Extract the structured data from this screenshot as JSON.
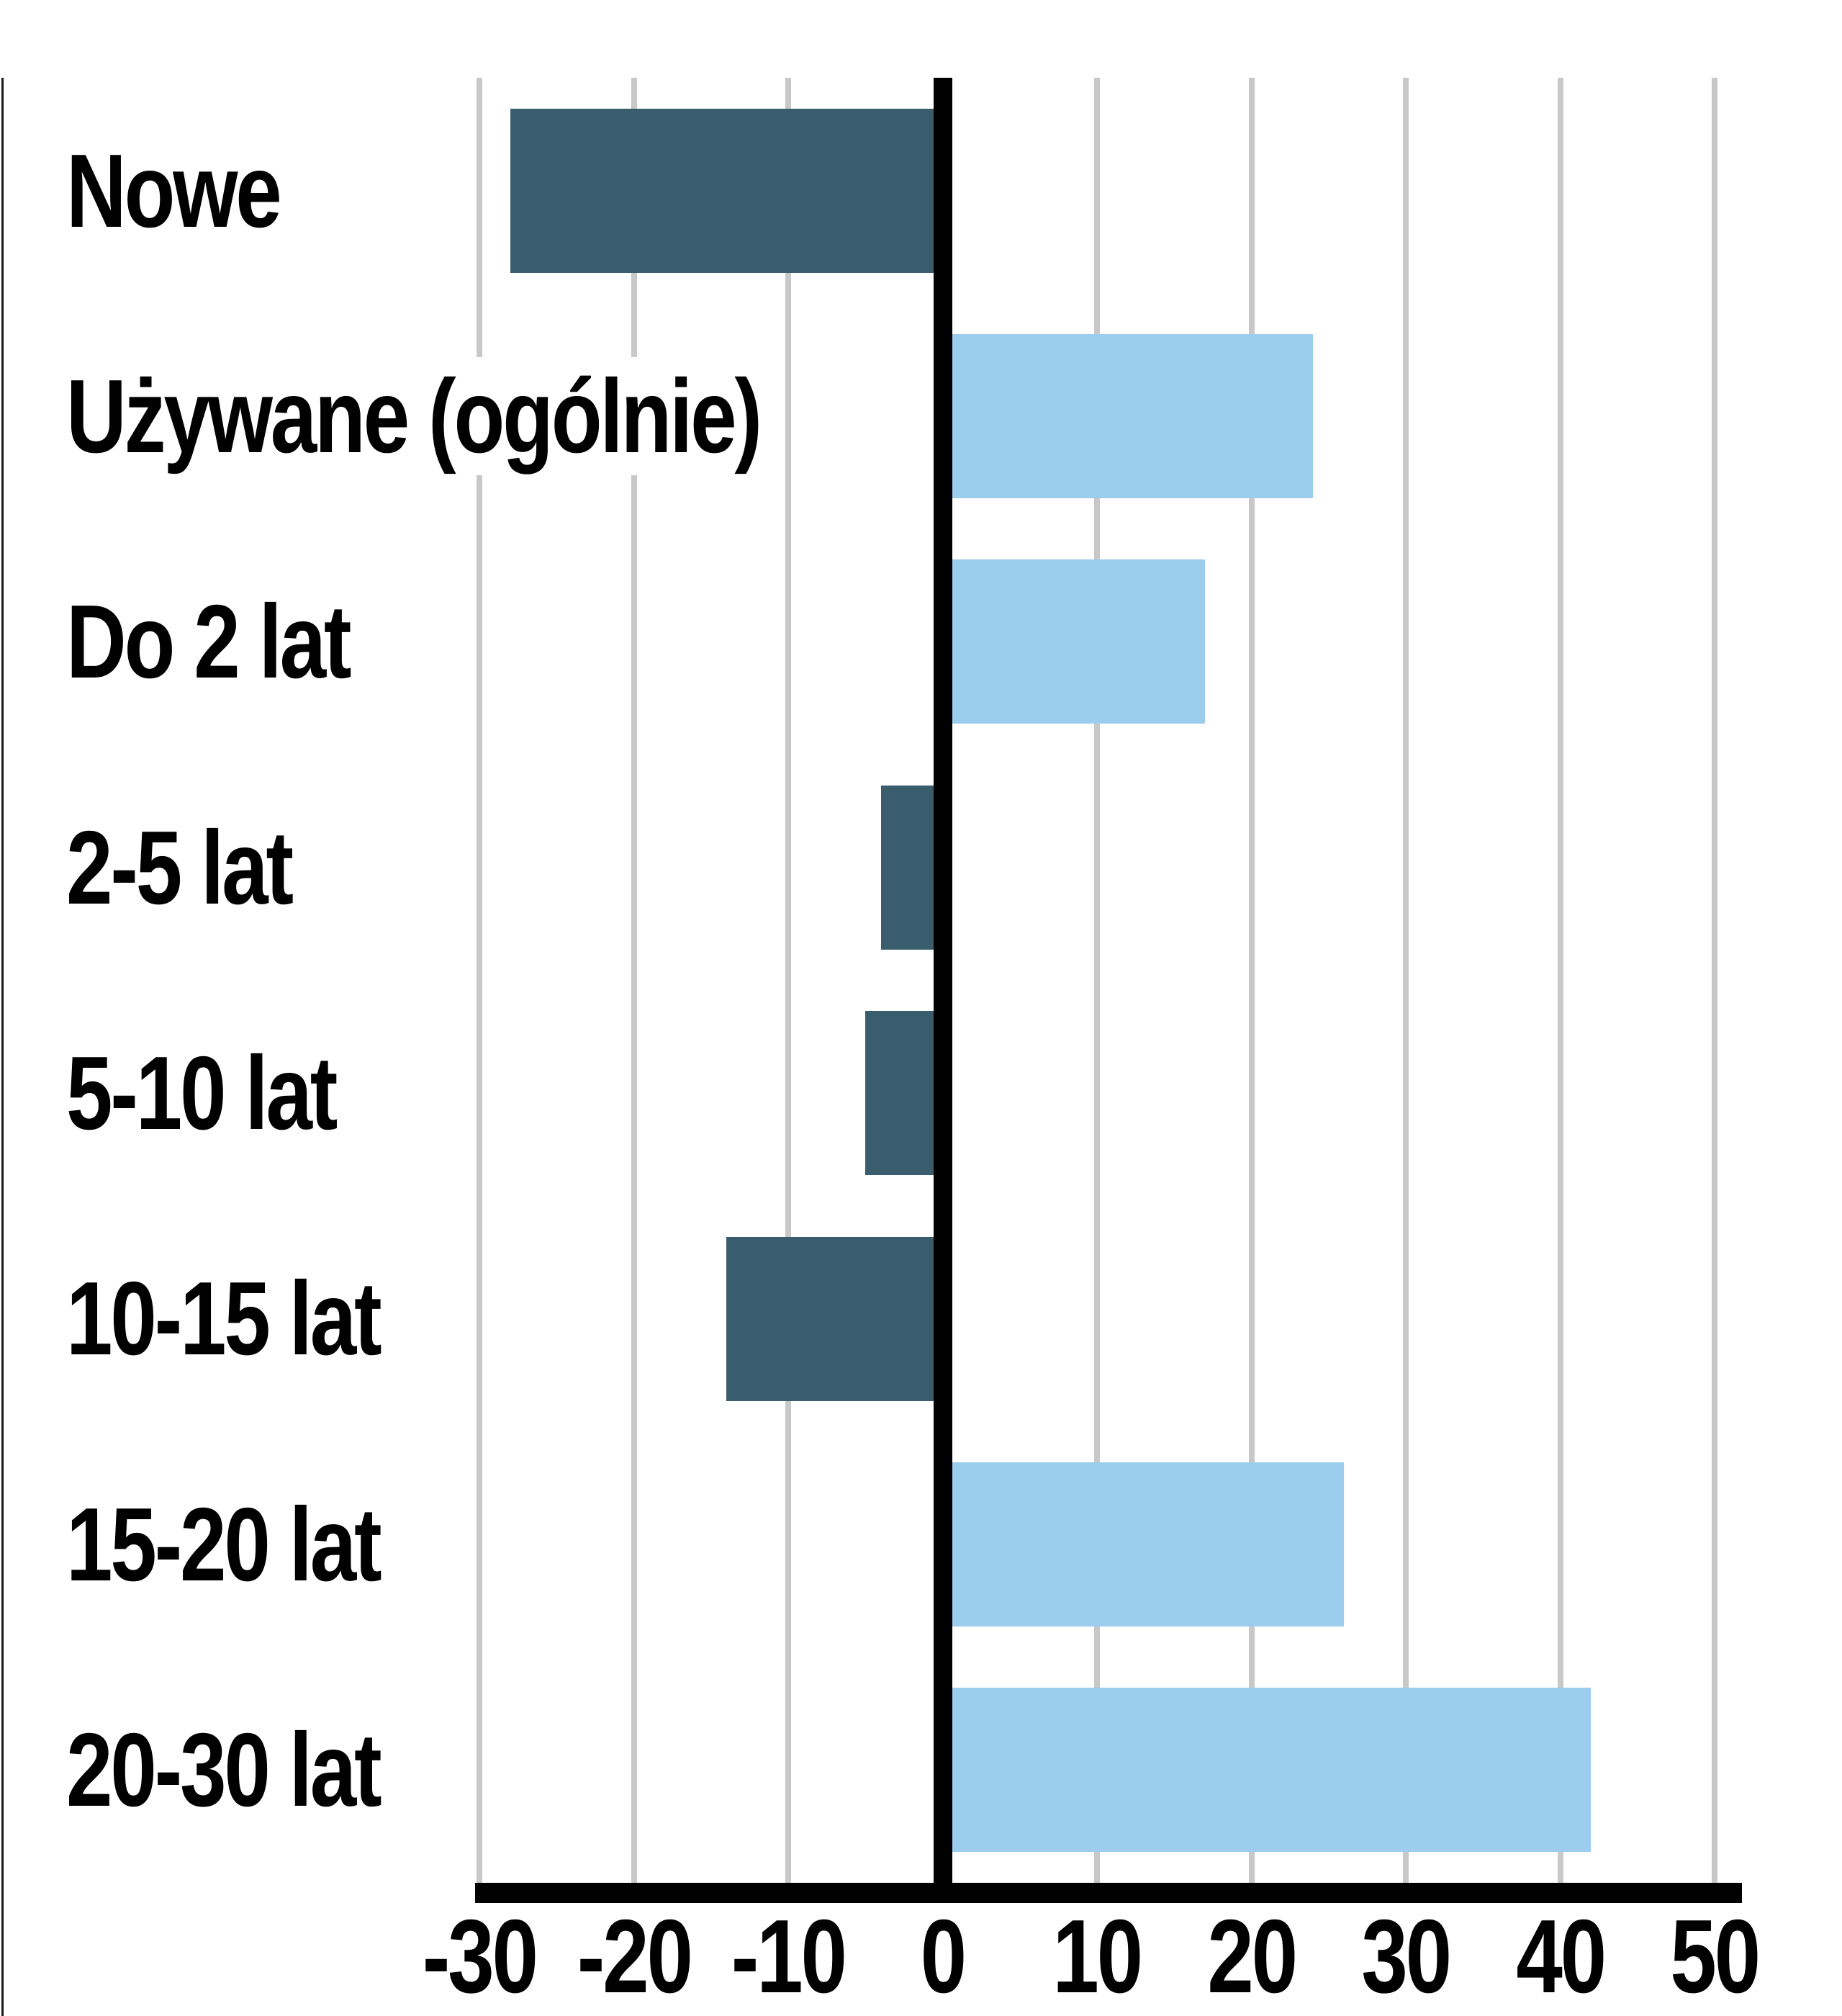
{
  "chart_data": {
    "type": "bar",
    "orientation": "horizontal",
    "title": "",
    "xlabel": "",
    "ylabel": "",
    "categories": [
      "Nowe",
      "Używane (ogólnie)",
      "Do 2 lat",
      "2-5 lat",
      "5-10 lat",
      "10-15 lat",
      "15-20 lat",
      "20-30 lat"
    ],
    "values": [
      -28,
      24,
      17,
      -4,
      -5,
      -14,
      26,
      42
    ],
    "xlim": [
      -30,
      50
    ],
    "x_ticks": [
      -30,
      -20,
      -10,
      0,
      10,
      20,
      30,
      40,
      50
    ],
    "x_tick_labels": [
      "-30",
      "-20",
      "-10",
      "0",
      "10",
      "20",
      "30",
      "40",
      "50"
    ],
    "grid": true,
    "legend": false,
    "colors": {
      "negative_bar": "#3A5D6D",
      "positive_bar": "#9CCCEE",
      "gridline": "#C8C8C8",
      "zero_line": "#000000",
      "axis_line": "#000000",
      "text": "#000000",
      "background": "#FFFFFF"
    }
  }
}
